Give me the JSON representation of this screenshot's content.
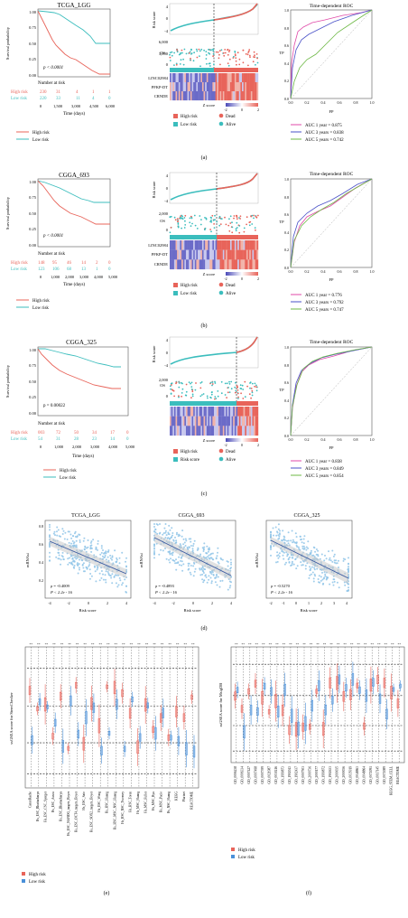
{
  "colors": {
    "high": "#e8645a",
    "low": "#3bbdbd",
    "line_c": "#ccc34a",
    "blue": "#4a52c8",
    "pink": "#e04aa8",
    "green": "#6db845",
    "scatter": "#8fc4e8"
  },
  "panel_labels": [
    "(a)",
    "(b)",
    "(c)",
    "(d)",
    "(e)",
    "(f)"
  ],
  "common": {
    "survival_ylabel": "Survival probability",
    "time_label": "Time (days)",
    "number_at_risk": "Number at risk",
    "high_risk": "High risk",
    "low_risk": "Low risk",
    "risk_score": "Risk score",
    "os": "OS",
    "z_score": "Z score",
    "dead": "Dead",
    "alive": "Alive",
    "roc_title": "Time-dependent ROC",
    "tp": "TP",
    "fp": "FP",
    "mrnasi": "mRNAsi"
  },
  "km_panels": [
    {
      "title": "TCGA_LGG",
      "pvalue": "p < 0.0001",
      "risk_high": [
        "230",
        "31",
        "4",
        "1",
        "1"
      ],
      "risk_low": [
        "220",
        "33",
        "11",
        "4",
        "0"
      ],
      "xticks": [
        "0",
        "1,500",
        "3,000",
        "4,500",
        "6,000"
      ],
      "yticks": [
        "1.00",
        "0.75",
        "0.50",
        "0.25",
        "0.00"
      ]
    },
    {
      "title": "CGGA_693",
      "pvalue": "p < 0.0001",
      "risk_high": [
        "148",
        "95",
        "46",
        "14",
        "2",
        "0"
      ],
      "risk_low": [
        "123",
        "106",
        "68",
        "13",
        "1",
        "0"
      ],
      "xticks": [
        "0",
        "1,000",
        "2,000",
        "3,000",
        "4,000",
        "5,000"
      ],
      "yticks": [
        "1.00",
        "0.75",
        "0.50",
        "0.25",
        "0.00"
      ]
    },
    {
      "title": "CGGA_325",
      "pvalue": "p = 0.00022",
      "risk_high": [
        "003",
        "72",
        "50",
        "34",
        "17",
        "0"
      ],
      "risk_low": [
        "54",
        "31",
        "28",
        "23",
        "14",
        "0"
      ],
      "xticks": [
        "0",
        "1,000",
        "2,000",
        "3,000",
        "4,000",
        "5,000"
      ],
      "yticks": [
        "1.00",
        "0.75",
        "0.50",
        "0.25",
        "0.00"
      ]
    }
  ],
  "risk_panels": [
    {
      "score_ticks": [
        "4",
        "0",
        "-4"
      ],
      "os_ticks": [
        "6,000",
        "3,000",
        "0"
      ],
      "genes": [
        "LINC02984",
        "PFKP-DT",
        "CRNDE"
      ]
    },
    {
      "score_ticks": [
        "4",
        "0",
        "-4"
      ],
      "os_ticks": [
        "2,000",
        "0"
      ],
      "genes": [
        "LINC02984",
        "PFKP-DT",
        "CRNDE"
      ]
    },
    {
      "score_ticks": [
        "4",
        "0",
        "-4"
      ],
      "os_ticks": [
        "2,000",
        "0"
      ],
      "genes": []
    }
  ],
  "risk_legend_low": [
    "Low risk",
    "Low risk",
    "Risk score"
  ],
  "zscale": [
    "-2",
    "0",
    "2"
  ],
  "roc_panels": [
    {
      "title": "Time-dependent ROC",
      "auc": [
        "AUC 1 year = 0.875",
        "AUC 3 years = 0.838",
        "AUC 5 years = 0.742"
      ]
    },
    {
      "title": "Time-dependent ROC",
      "auc": [
        "AUC 1 year = 0.776",
        "AUC 3 years = 0.792",
        "AUC 5 years = 0.747"
      ]
    },
    {
      "title": "Time-dependent ROC",
      "auc": [
        "AUC 1 year = 0.838",
        "AUC 3 years = 0.849",
        "AUC 5 years = 0.854"
      ]
    }
  ],
  "roc_ticks": [
    "0.0",
    "0.2",
    "0.4",
    "0.6",
    "0.8",
    "1.0"
  ],
  "scatter_panels": [
    {
      "title": "TCGA_LGG",
      "r": "ρ = -0.4009",
      "p": "P < 2.2e - 16",
      "xticks": [
        "-4",
        "-2",
        "0",
        "2",
        "4"
      ],
      "yticks": [
        "0.8",
        "0.6",
        "0.4",
        "0.2"
      ]
    },
    {
      "title": "CGGA_693",
      "r": "ρ = -0.4893",
      "p": "P < 2.2e - 16",
      "xticks": [
        "-4",
        "-2",
        "0",
        "2",
        "4"
      ],
      "yticks": [
        "0.8",
        "0.6",
        "0.4",
        "0.2"
      ]
    },
    {
      "title": "CGGA_325",
      "r": "ρ = -0.5270",
      "p": "P < 2.2e - 16",
      "xticks": [
        "-2",
        "-1",
        "0",
        "1",
        "2",
        "3",
        "4"
      ],
      "yticks": [
        "0.6",
        "0.4",
        "0.2"
      ]
    }
  ],
  "e_panel": {
    "ylabel": "ssGSEA score for StemChecker",
    "categories": [
      "CanceRache",
      "Hs_ESC_Bhattacharya",
      "Hs_ESC_CSC_Sperger",
      "Hs_ESC_Assou",
      "Hs_ESC_Bhattacharya",
      "Hs_ESC_NANOG_targets_Boyer",
      "Hs_ESC_OCT4_targets_Boyer",
      "Hs_ESC_Sato",
      "Hs_ESC_SOX2_targets_Boyer",
      "Hs_ESC_Wong",
      "Hs_HSC_Huang",
      "Hs_HSC_MSC_NSC_Huang",
      "Hs_HSC_NSC_Twomey",
      "Hs_HSC_Toren",
      "Hs_MSC_Huang",
      "Hs_MSC_Fuller",
      "Hs_MSC_Ryu",
      "Hs_MSC_Pacio",
      "Hs_NSC_Huang",
      "KEGG",
      "Plurinet",
      "REACTOME"
    ],
    "legend": [
      "High risk",
      "Low risk"
    ]
  },
  "f_panel": {
    "ylabel": "ssGSEA score for MsigDB",
    "categories": [
      "GO_0006238",
      "GO_0006334",
      "GO_0007427",
      "GO_0007498",
      "GO_0007399",
      "GO_0021987",
      "GO_0030216",
      "GO_1990873",
      "GO_1902043",
      "GO_1902437",
      "GO_0007503",
      "GO_2000736",
      "GO_2000177",
      "GO_1990872",
      "GO_1902633",
      "GO_2000035",
      "GO_2000036",
      "GO_0035019",
      "GO_0048863",
      "GO_0048864",
      "GO_0072091",
      "GO_0017145",
      "GO_0072089",
      "KEGG_STEM_CELL",
      "REACTOME"
    ],
    "legend": [
      "High risk",
      "Low risk"
    ]
  },
  "sig_marks": "**"
}
